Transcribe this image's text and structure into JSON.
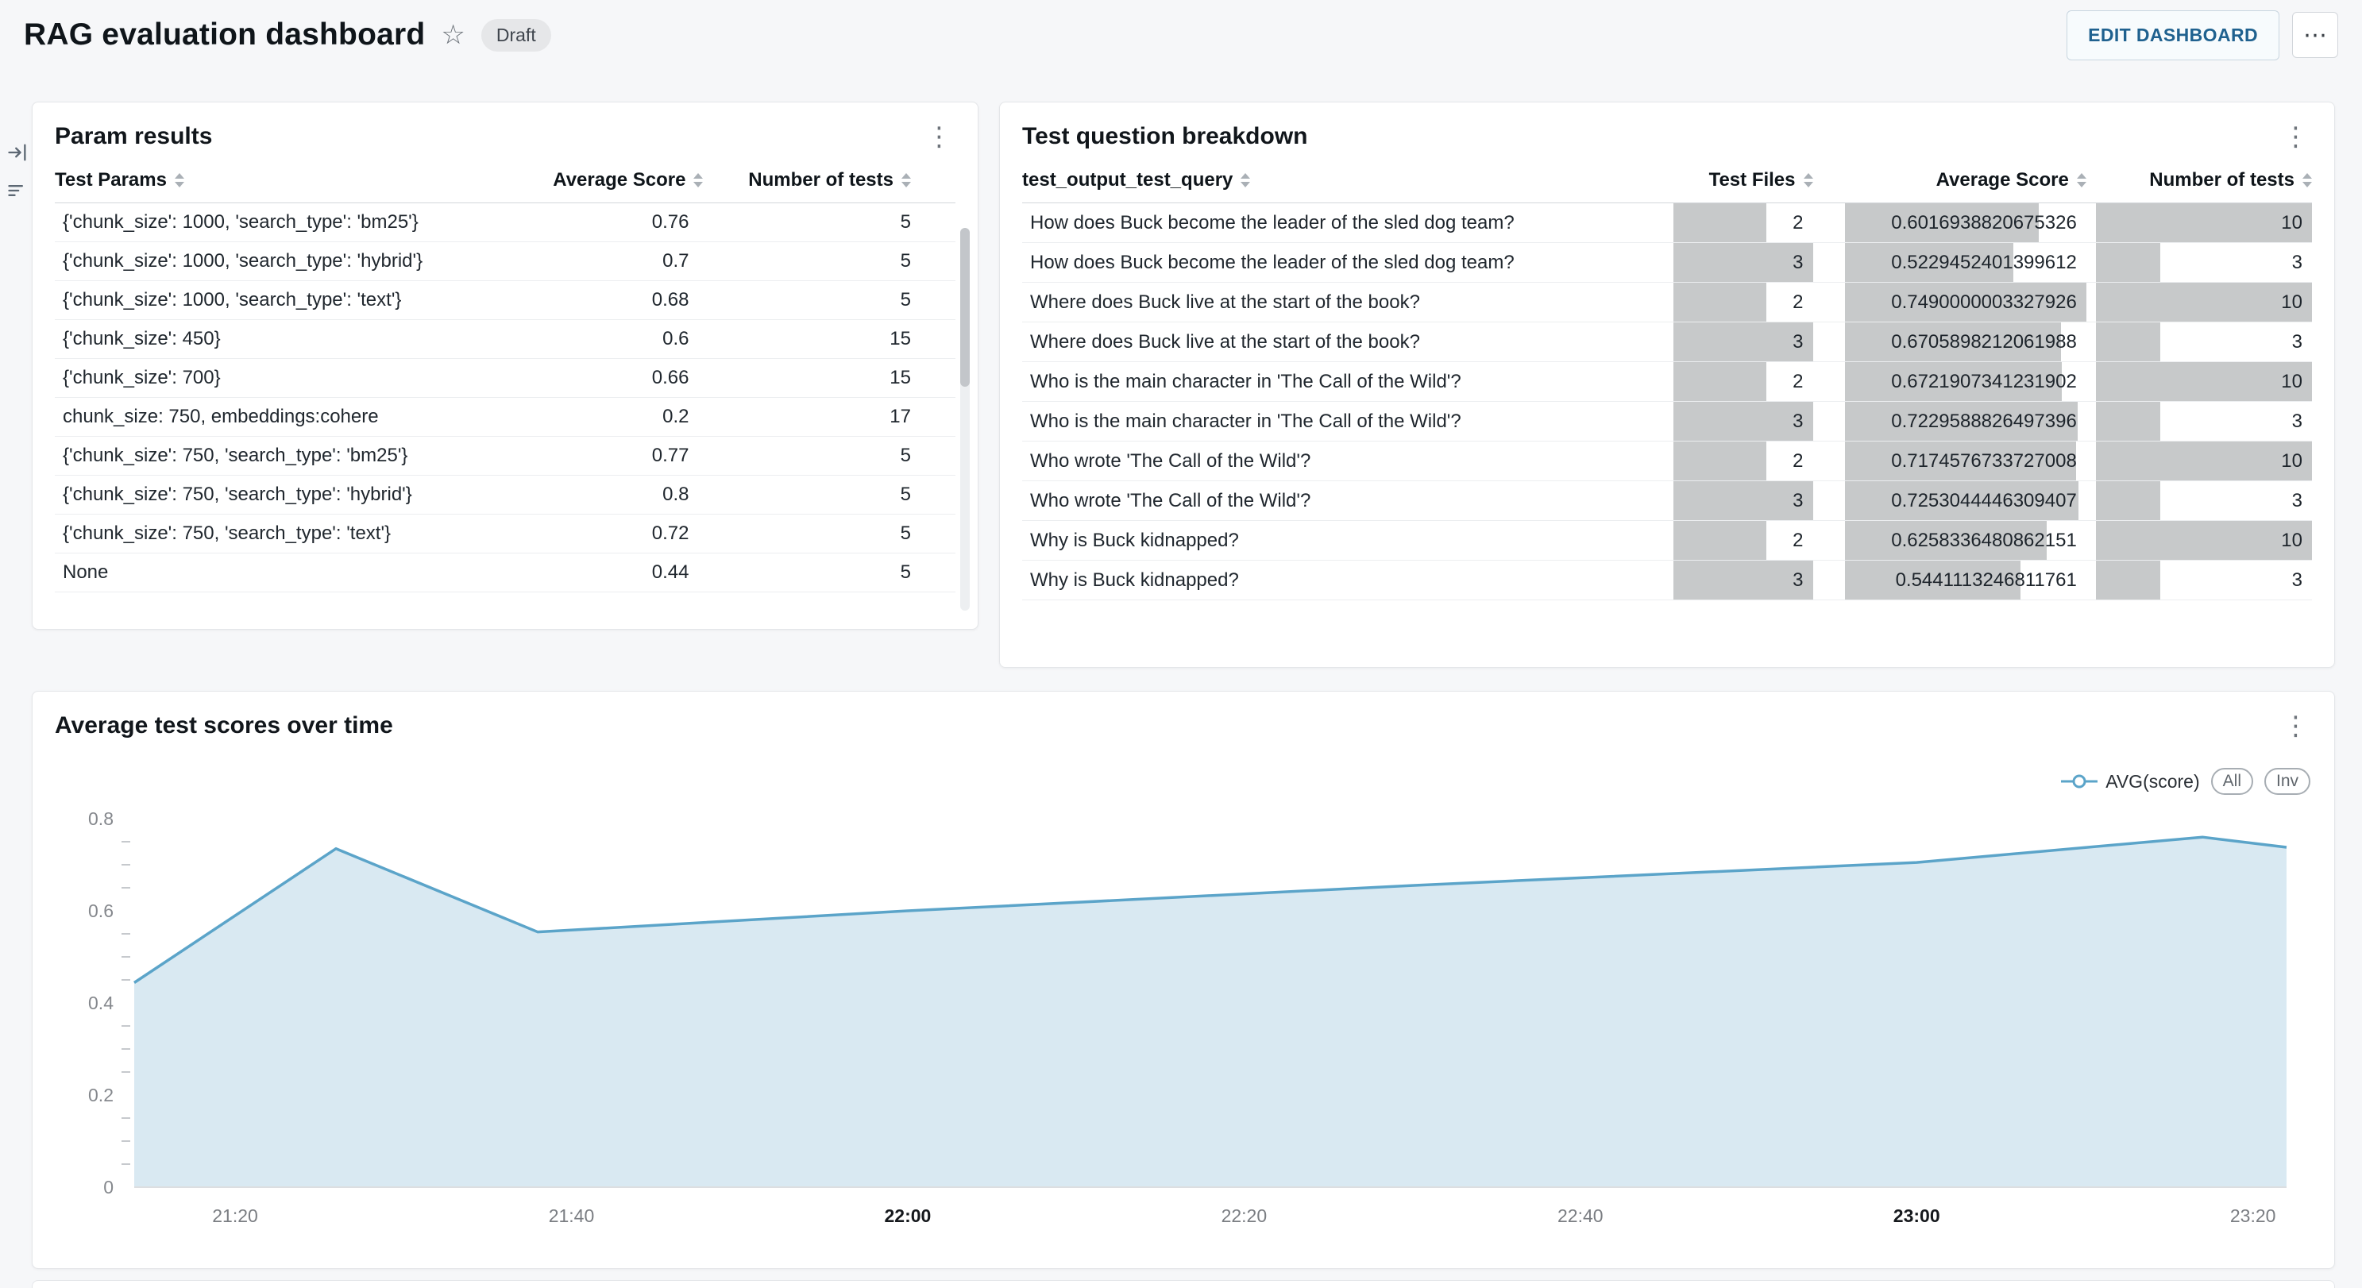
{
  "header": {
    "title": "RAG evaluation dashboard",
    "status_badge": "Draft",
    "edit_button_label": "EDIT DASHBOARD",
    "more_button_label": "⋯"
  },
  "param_results": {
    "title": "Param results",
    "columns": [
      "Test Params",
      "Average Score",
      "Number of tests"
    ],
    "rows": [
      [
        "{'chunk_size': 1000, 'search_type': 'bm25'}",
        "0.76",
        "5"
      ],
      [
        "{'chunk_size': 1000, 'search_type': 'hybrid'}",
        "0.7",
        "5"
      ],
      [
        "{'chunk_size': 1000, 'search_type': 'text'}",
        "0.68",
        "5"
      ],
      [
        "{'chunk_size': 450}",
        "0.6",
        "15"
      ],
      [
        "{'chunk_size': 700}",
        "0.66",
        "15"
      ],
      [
        "chunk_size: 750, embeddings:cohere",
        "0.2",
        "17"
      ],
      [
        "{'chunk_size': 750, 'search_type': 'bm25'}",
        "0.77",
        "5"
      ],
      [
        "{'chunk_size': 750, 'search_type': 'hybrid'}",
        "0.8",
        "5"
      ],
      [
        "{'chunk_size': 750, 'search_type': 'text'}",
        "0.72",
        "5"
      ],
      [
        "None",
        "0.44",
        "5"
      ]
    ]
  },
  "question_breakdown": {
    "title": "Test question breakdown",
    "columns": [
      "test_output_test_query",
      "Test Files",
      "Average Score",
      "Number of tests"
    ],
    "bar_max": {
      "test_files": 3,
      "avg_score": 0.7490000003327926,
      "num_tests": 10
    },
    "bar_color": "#c7c9ca",
    "rows": [
      {
        "query": "How does Buck become the leader of the sled dog team?",
        "test_files": "2",
        "avg_score": "0.6016938820675326",
        "num_tests": "10"
      },
      {
        "query": "How does Buck become the leader of the sled dog team?",
        "test_files": "3",
        "avg_score": "0.5229452401399612",
        "num_tests": "3"
      },
      {
        "query": "Where does Buck live at the start of the book?",
        "test_files": "2",
        "avg_score": "0.7490000003327926",
        "num_tests": "10"
      },
      {
        "query": "Where does Buck live at the start of the book?",
        "test_files": "3",
        "avg_score": "0.6705898212061988",
        "num_tests": "3"
      },
      {
        "query": "Who is the main character in 'The Call of the Wild'?",
        "test_files": "2",
        "avg_score": "0.6721907341231902",
        "num_tests": "10"
      },
      {
        "query": "Who is the main character in 'The Call of the Wild'?",
        "test_files": "3",
        "avg_score": "0.7229588826497396",
        "num_tests": "3"
      },
      {
        "query": "Who wrote 'The Call of the Wild'?",
        "test_files": "2",
        "avg_score": "0.7174576733727008",
        "num_tests": "10"
      },
      {
        "query": "Who wrote 'The Call of the Wild'?",
        "test_files": "3",
        "avg_score": "0.7253044446309407",
        "num_tests": "3"
      },
      {
        "query": "Why is Buck kidnapped?",
        "test_files": "2",
        "avg_score": "0.6258336480862151",
        "num_tests": "10"
      },
      {
        "query": "Why is Buck kidnapped?",
        "test_files": "3",
        "avg_score": "0.5441113246811761",
        "num_tests": "3"
      }
    ]
  },
  "chart_data": {
    "type": "area",
    "title": "Average test scores over time",
    "series": [
      {
        "name": "AVG(score)",
        "points": [
          [
            "21:14",
            0.444
          ],
          [
            "21:26",
            0.735
          ],
          [
            "21:38",
            0.554
          ],
          [
            "22:00",
            0.6
          ],
          [
            "22:30",
            0.655
          ],
          [
            "23:00",
            0.705
          ],
          [
            "23:17",
            0.76
          ],
          [
            "23:22",
            0.738
          ]
        ]
      }
    ],
    "xlim": [
      "21:14",
      "23:22"
    ],
    "ylim": [
      0,
      0.8
    ],
    "y_ticks": [
      0,
      0.2,
      0.4,
      0.6,
      0.8
    ],
    "y_minor_step": 0.05,
    "x_ticks": [
      {
        "label": "21:20",
        "bold": false
      },
      {
        "label": "21:40",
        "bold": false
      },
      {
        "label": "22:00",
        "bold": true
      },
      {
        "label": "22:20",
        "bold": false
      },
      {
        "label": "22:40",
        "bold": false
      },
      {
        "label": "23:00",
        "bold": true
      },
      {
        "label": "23:20",
        "bold": false
      }
    ],
    "legend_buttons": [
      "All",
      "Inv"
    ],
    "line_color": "#5ba4c9",
    "fill_color": "#d9e9f2"
  }
}
